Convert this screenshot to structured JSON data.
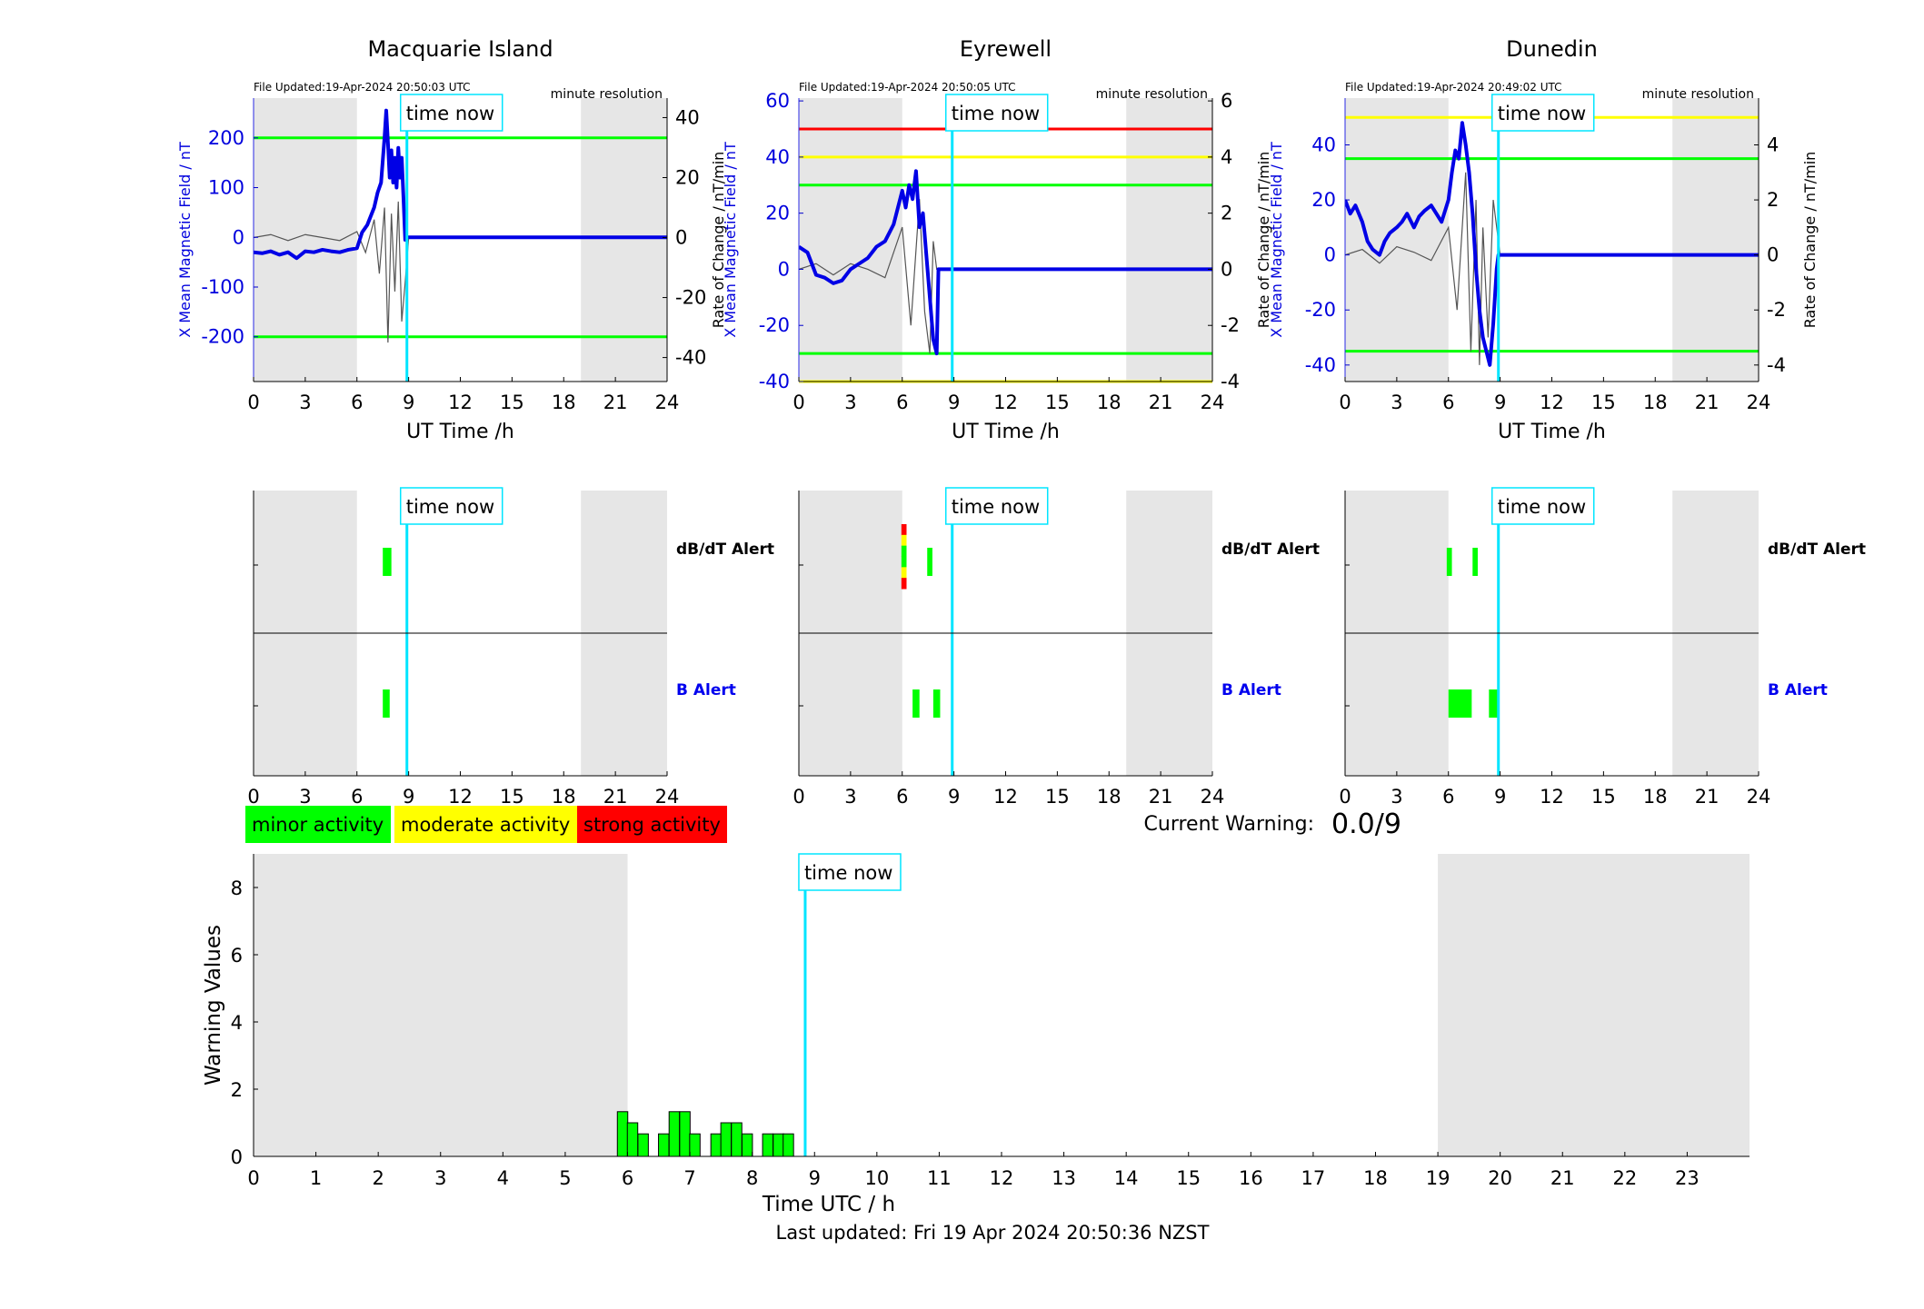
{
  "page": {
    "footer": "Last updated: Fri 19 Apr 2024 20:50:36 NZST",
    "current_warning_label": "Current Warning:",
    "current_warning_value": "0.0/9",
    "legend": [
      {
        "label": "minor activity",
        "color": "#00ff00"
      },
      {
        "label": "moderate activity",
        "color": "#ffff00"
      },
      {
        "label": "strong activity",
        "color": "#ff0000"
      }
    ],
    "time_now_label": "time now",
    "resolution_label": "minute resolution",
    "colors": {
      "shade": "#e6e6e6",
      "time_now_line": "#00e5ff",
      "field_line": "#0000e6",
      "rate_line": "#555555",
      "minor": "#00ff00",
      "moderate": "#ffff00",
      "strong": "#ff0000"
    }
  },
  "chart_data": [
    {
      "type": "line",
      "title": "Macquarie Island",
      "file_updated": "File Updated:19-Apr-2024 20:50:03 UTC",
      "xlabel": "UT Time /h",
      "ylabel_left": "X Mean Magnetic Field / nT",
      "ylabel_right": "Rate of Change / nT/min",
      "xlim": [
        0,
        24
      ],
      "x_ticks": [
        0,
        3,
        6,
        9,
        12,
        15,
        18,
        21,
        24
      ],
      "ylim_left": [
        -290,
        280
      ],
      "y_ticks_left": [
        -200,
        -100,
        0,
        100,
        200
      ],
      "ylim_right": [
        -48,
        46.5
      ],
      "y_ticks_right": [
        -40,
        -20,
        0,
        20,
        40
      ],
      "thresholds": [
        {
          "value": 200,
          "color": "#00ff00"
        },
        {
          "value": -200,
          "color": "#00ff00"
        }
      ],
      "shaded_hours": [
        [
          0,
          6
        ],
        [
          19,
          24
        ]
      ],
      "time_now": 8.9,
      "series": [
        {
          "role": "field",
          "x": [
            0,
            0.5,
            1,
            1.5,
            2,
            2.5,
            3,
            3.5,
            4,
            4.5,
            5,
            5.5,
            6,
            6.3,
            6.6,
            7,
            7.2,
            7.4,
            7.6,
            7.7,
            7.8,
            7.9,
            8,
            8.1,
            8.2,
            8.3,
            8.4,
            8.5,
            8.6,
            8.7,
            8.8,
            8.9,
            9,
            12,
            15,
            18,
            21,
            24
          ],
          "y": [
            -30,
            -32,
            -28,
            -35,
            -30,
            -42,
            -28,
            -30,
            -25,
            -28,
            -30,
            -25,
            -22,
            10,
            25,
            60,
            90,
            110,
            200,
            255,
            190,
            120,
            175,
            110,
            160,
            100,
            180,
            120,
            160,
            80,
            -5,
            0,
            0,
            0,
            0,
            0,
            0,
            0
          ]
        },
        {
          "role": "rate",
          "x": [
            0,
            1,
            2,
            3,
            4,
            5,
            6,
            6.5,
            7,
            7.3,
            7.6,
            7.8,
            8,
            8.2,
            8.4,
            8.6,
            8.8,
            9,
            24
          ],
          "y": [
            0,
            1,
            -1,
            1,
            0,
            -1,
            2,
            -5,
            6,
            -12,
            10,
            -35,
            8,
            -18,
            12,
            -28,
            -15,
            0,
            0
          ]
        }
      ]
    },
    {
      "type": "line",
      "title": "Eyrewell",
      "file_updated": "File Updated:19-Apr-2024 20:50:05 UTC",
      "xlabel": "UT Time /h",
      "ylabel_left": "X Mean Magnetic Field / nT",
      "ylabel_right": "Rate of Change / nT/min",
      "xlim": [
        0,
        24
      ],
      "x_ticks": [
        0,
        3,
        6,
        9,
        12,
        15,
        18,
        21,
        24
      ],
      "ylim_left": [
        -40,
        61
      ],
      "y_ticks_left": [
        -40,
        -20,
        0,
        20,
        40,
        60
      ],
      "ylim_right": [
        -4,
        6.1
      ],
      "y_ticks_right": [
        -4,
        -2,
        0,
        2,
        4,
        6
      ],
      "thresholds": [
        {
          "value": 50,
          "color": "#ff0000"
        },
        {
          "value": 40,
          "color": "#ffff00"
        },
        {
          "value": 30,
          "color": "#00ff00"
        },
        {
          "value": -30,
          "color": "#00ff00"
        },
        {
          "value": -40,
          "color": "#ffff00"
        }
      ],
      "shaded_hours": [
        [
          0,
          6
        ],
        [
          19,
          24
        ]
      ],
      "time_now": 8.9,
      "series": [
        {
          "role": "field",
          "x": [
            0,
            0.5,
            1,
            1.5,
            2,
            2.5,
            3,
            3.5,
            4,
            4.5,
            5,
            5.5,
            6,
            6.2,
            6.4,
            6.6,
            6.8,
            7,
            7.2,
            7.4,
            7.6,
            7.8,
            8,
            8.1,
            8.2,
            8.5,
            9,
            12,
            15,
            18,
            21,
            24
          ],
          "y": [
            8,
            6,
            -2,
            -3,
            -5,
            -4,
            0,
            2,
            4,
            8,
            10,
            16,
            28,
            22,
            30,
            25,
            35,
            15,
            20,
            5,
            -10,
            -25,
            -30,
            0,
            0,
            0,
            0,
            0,
            0,
            0,
            0,
            0
          ]
        },
        {
          "role": "rate",
          "x": [
            0,
            1,
            2,
            3,
            4,
            5,
            6,
            6.5,
            7,
            7.3,
            7.6,
            7.8,
            8,
            24
          ],
          "y": [
            0,
            0.2,
            -0.2,
            0.2,
            0,
            -0.3,
            1.5,
            -2,
            2.5,
            -1.5,
            -3,
            1,
            0,
            0
          ]
        }
      ]
    },
    {
      "type": "line",
      "title": "Dunedin",
      "file_updated": "File Updated:19-Apr-2024 20:49:02 UTC",
      "xlabel": "UT Time /h",
      "ylabel_left": "X Mean Magnetic Field / nT",
      "ylabel_right": "Rate of Change / nT/min",
      "xlim": [
        0,
        24
      ],
      "x_ticks": [
        0,
        3,
        6,
        9,
        12,
        15,
        18,
        21,
        24
      ],
      "ylim_left": [
        -46,
        57
      ],
      "y_ticks_left": [
        -40,
        -20,
        0,
        20,
        40
      ],
      "ylim_right": [
        -4.6,
        5.7
      ],
      "y_ticks_right": [
        -4,
        -2,
        0,
        2,
        4
      ],
      "thresholds": [
        {
          "value": 50,
          "color": "#ffff00"
        },
        {
          "value": 35,
          "color": "#00ff00"
        },
        {
          "value": -35,
          "color": "#00ff00"
        }
      ],
      "shaded_hours": [
        [
          0,
          6
        ],
        [
          19,
          24
        ]
      ],
      "time_now": 8.9,
      "series": [
        {
          "role": "field",
          "x": [
            0,
            0.3,
            0.6,
            1,
            1.3,
            1.6,
            2,
            2.3,
            2.6,
            3,
            3.3,
            3.6,
            4,
            4.3,
            4.6,
            5,
            5.3,
            5.6,
            6,
            6.2,
            6.4,
            6.6,
            6.8,
            7,
            7.2,
            7.4,
            7.6,
            7.8,
            8,
            8.2,
            8.4,
            8.6,
            8.8,
            8.9,
            9,
            12,
            15,
            18,
            21,
            24
          ],
          "y": [
            20,
            15,
            18,
            12,
            5,
            2,
            0,
            5,
            8,
            10,
            12,
            15,
            10,
            14,
            16,
            18,
            15,
            12,
            20,
            30,
            38,
            35,
            48,
            40,
            30,
            15,
            -5,
            -20,
            -30,
            -35,
            -40,
            -25,
            -5,
            0,
            0,
            0,
            0,
            0,
            0,
            0
          ]
        },
        {
          "role": "rate",
          "x": [
            0,
            1,
            2,
            3,
            4,
            5,
            6,
            6.5,
            7,
            7.3,
            7.6,
            7.8,
            8,
            8.3,
            8.6,
            9,
            24
          ],
          "y": [
            0,
            0.2,
            -0.3,
            0.3,
            0.1,
            -0.2,
            1,
            -2,
            3,
            -3.5,
            2,
            -4,
            1,
            -3,
            2,
            0,
            0
          ]
        }
      ]
    },
    {
      "type": "bar",
      "title": "",
      "rows": [
        "dB/dT Alert",
        "B Alert"
      ],
      "xlim": [
        0,
        24
      ],
      "x_ticks": [
        0,
        3,
        6,
        9,
        12,
        15,
        18,
        21,
        24
      ],
      "shaded_hours": [
        [
          0,
          6
        ],
        [
          19,
          24
        ]
      ],
      "time_now": 8.9,
      "alerts": [
        {
          "row": "dB/dT Alert",
          "start": 7.5,
          "end": 8.0,
          "level": "minor"
        },
        {
          "row": "B Alert",
          "start": 7.5,
          "end": 7.9,
          "level": "minor"
        }
      ]
    },
    {
      "type": "bar",
      "title": "",
      "rows": [
        "dB/dT Alert",
        "B Alert"
      ],
      "xlim": [
        0,
        24
      ],
      "x_ticks": [
        0,
        3,
        6,
        9,
        12,
        15,
        18,
        21,
        24
      ],
      "shaded_hours": [
        [
          0,
          6
        ],
        [
          19,
          24
        ]
      ],
      "time_now": 8.9,
      "alerts": [
        {
          "row": "dB/dT Alert",
          "start": 5.95,
          "end": 6.25,
          "level": "stacked"
        },
        {
          "row": "dB/dT Alert",
          "start": 7.45,
          "end": 7.75,
          "level": "minor"
        },
        {
          "row": "B Alert",
          "start": 6.6,
          "end": 7.0,
          "level": "minor"
        },
        {
          "row": "B Alert",
          "start": 7.8,
          "end": 8.2,
          "level": "minor"
        }
      ]
    },
    {
      "type": "bar",
      "title": "",
      "rows": [
        "dB/dT Alert",
        "B Alert"
      ],
      "xlim": [
        0,
        24
      ],
      "x_ticks": [
        0,
        3,
        6,
        9,
        12,
        15,
        18,
        21,
        24
      ],
      "shaded_hours": [
        [
          0,
          6
        ],
        [
          19,
          24
        ]
      ],
      "time_now": 8.9,
      "alerts": [
        {
          "row": "dB/dT Alert",
          "start": 5.9,
          "end": 6.2,
          "level": "minor"
        },
        {
          "row": "dB/dT Alert",
          "start": 7.4,
          "end": 7.7,
          "level": "minor"
        },
        {
          "row": "B Alert",
          "start": 6.0,
          "end": 7.35,
          "level": "minor"
        },
        {
          "row": "B Alert",
          "start": 8.35,
          "end": 8.85,
          "level": "minor"
        }
      ]
    },
    {
      "type": "bar",
      "title": "",
      "xlabel": "Time UTC / h",
      "ylabel": "Warning Values",
      "xlim": [
        0,
        24
      ],
      "x_ticks": [
        0,
        1,
        2,
        3,
        4,
        5,
        6,
        7,
        8,
        9,
        10,
        11,
        12,
        13,
        14,
        15,
        16,
        17,
        18,
        19,
        20,
        21,
        22,
        23
      ],
      "ylim": [
        0,
        9
      ],
      "y_ticks": [
        0,
        2,
        4,
        6,
        8
      ],
      "shaded_hours": [
        [
          0,
          6
        ],
        [
          19,
          24
        ]
      ],
      "time_now": 8.85,
      "bar_width": 0.167,
      "x": [
        5.92,
        6.08,
        6.25,
        6.58,
        6.75,
        6.92,
        7.08,
        7.42,
        7.58,
        7.75,
        7.92,
        8.25,
        8.42,
        8.58
      ],
      "values": [
        1.33,
        1.0,
        0.67,
        0.67,
        1.33,
        1.33,
        0.67,
        0.67,
        1.0,
        1.0,
        0.67,
        0.67,
        0.67,
        0.67
      ]
    }
  ]
}
